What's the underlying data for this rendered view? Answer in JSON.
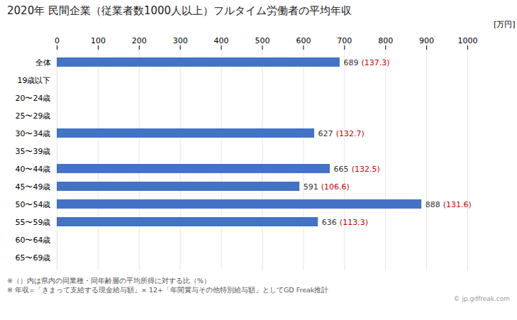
{
  "chart_data": {
    "type": "bar",
    "orientation": "horizontal",
    "title": "2020年 民間企業（従業者数1000人以上）フルタイム労働者の平均年収",
    "xlabel": "[万円]",
    "categories": [
      "全体",
      "19歳以下",
      "20〜24歳",
      "25〜29歳",
      "30〜34歳",
      "35〜39歳",
      "40〜44歳",
      "45〜49歳",
      "50〜54歳",
      "55〜59歳",
      "60〜64歳",
      "65〜69歳"
    ],
    "values": [
      689,
      0,
      0,
      0,
      627,
      0,
      665,
      591,
      888,
      636,
      0,
      0
    ],
    "value_labels": [
      "689",
      null,
      null,
      null,
      "627",
      null,
      "665",
      "591",
      "888",
      "636",
      null,
      null
    ],
    "ratios": [
      137.3,
      null,
      null,
      null,
      132.7,
      null,
      132.5,
      106.6,
      131.6,
      113.3,
      null,
      null
    ],
    "ratio_labels": [
      "(137.3)",
      null,
      null,
      null,
      "(132.7)",
      null,
      "(132.5)",
      "(106.6)",
      "(131.6)",
      "(113.3)",
      null,
      null
    ],
    "color": "#4472c4",
    "xlim": [
      0,
      1000
    ],
    "xticks": [
      0,
      100,
      200,
      300,
      400,
      500,
      600,
      700,
      800,
      900,
      1000
    ],
    "grid": true,
    "data_labels": true,
    "annotations": [
      "※（）内は県内の同業種・同年齢層の平均所得に対する比（%）",
      "※ 年収=「きまって支給する現金給与額」× 12+「年間賞与その他特別給与額」としてGD Freak推計",
      "© jp.gdfreak.com"
    ]
  }
}
